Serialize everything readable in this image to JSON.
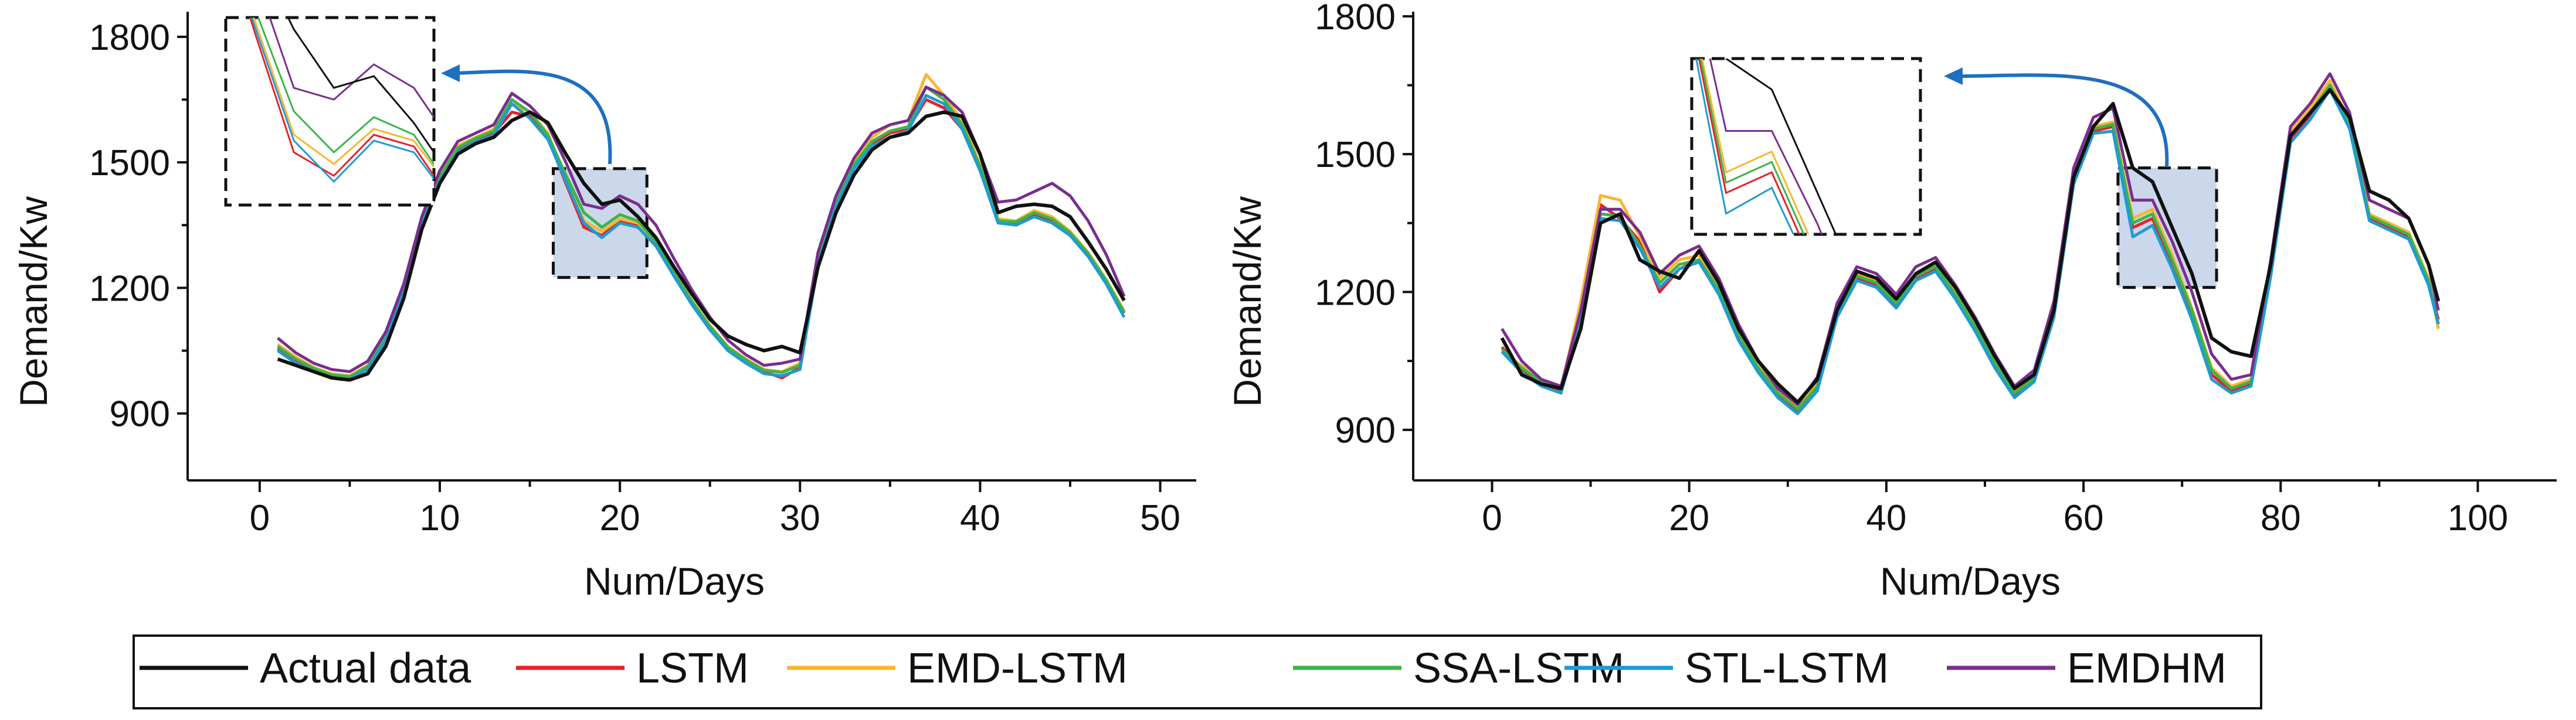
{
  "figure": {
    "description_free": true
  },
  "legend": {
    "entries": [
      {
        "label": "Actual data",
        "color": "#111111"
      },
      {
        "label": "LSTM",
        "color": "#e8202a"
      },
      {
        "label": "EMD-LSTM",
        "color": "#f7b731"
      },
      {
        "label": "SSA-LSTM",
        "color": "#3cb44b"
      },
      {
        "label": "STL-LSTM",
        "color": "#1f9bd1"
      },
      {
        "label": "EMDHM",
        "color": "#7b2d8e"
      }
    ]
  },
  "chart_data": [
    {
      "type": "line",
      "title": "",
      "xlabel": "Num/Days",
      "ylabel": "Demand/Kw",
      "xlim": [
        -4,
        52
      ],
      "ylim": [
        740,
        1860
      ],
      "xticks": [
        0,
        10,
        20,
        30,
        40,
        50
      ],
      "yticks": [
        900,
        1200,
        1500,
        1800
      ],
      "highlight_box": {
        "x": [
          16.3,
          21.5
        ],
        "y": [
          1225,
          1485
        ]
      },
      "inset": {
        "x": [
          16.3,
          21.5
        ],
        "y": [
          1300,
          1460
        ]
      },
      "x": [
        1,
        2,
        3,
        4,
        5,
        6,
        7,
        8,
        9,
        10,
        11,
        12,
        13,
        14,
        15,
        16,
        17,
        18,
        19,
        20,
        21,
        22,
        23,
        24,
        25,
        26,
        27,
        28,
        29,
        30,
        31,
        32,
        33,
        34,
        35,
        36,
        37,
        38,
        39,
        40,
        41,
        42,
        43,
        44,
        45,
        46,
        47,
        48
      ],
      "series": [
        {
          "name": "Actual data",
          "values": [
            1030,
            1015,
            1000,
            985,
            980,
            995,
            1060,
            1175,
            1340,
            1450,
            1520,
            1545,
            1560,
            1600,
            1620,
            1595,
            1520,
            1450,
            1400,
            1410,
            1370,
            1320,
            1250,
            1185,
            1125,
            1085,
            1065,
            1050,
            1060,
            1045,
            1250,
            1380,
            1470,
            1530,
            1560,
            1570,
            1610,
            1620,
            1610,
            1520,
            1380,
            1395,
            1400,
            1395,
            1370,
            1310,
            1245,
            1170
          ]
        },
        {
          "name": "LSTM",
          "values": [
            1055,
            1025,
            1005,
            990,
            985,
            1010,
            1080,
            1195,
            1355,
            1460,
            1530,
            1555,
            1570,
            1620,
            1610,
            1560,
            1450,
            1345,
            1325,
            1360,
            1350,
            1300,
            1230,
            1165,
            1105,
            1055,
            1025,
            1000,
            985,
            1010,
            1260,
            1400,
            1490,
            1545,
            1570,
            1580,
            1650,
            1630,
            1580,
            1480,
            1360,
            1355,
            1375,
            1360,
            1330,
            1280,
            1215,
            1140
          ]
        },
        {
          "name": "EMD-LSTM",
          "values": [
            1065,
            1035,
            1010,
            995,
            990,
            1015,
            1085,
            1200,
            1360,
            1470,
            1540,
            1560,
            1580,
            1640,
            1620,
            1570,
            1460,
            1360,
            1335,
            1365,
            1355,
            1310,
            1240,
            1170,
            1110,
            1060,
            1030,
            1005,
            1000,
            1020,
            1270,
            1410,
            1500,
            1560,
            1590,
            1600,
            1710,
            1660,
            1600,
            1495,
            1365,
            1360,
            1385,
            1370,
            1335,
            1285,
            1220,
            1145
          ]
        },
        {
          "name": "SSA-LSTM",
          "values": [
            1060,
            1030,
            1008,
            992,
            988,
            1012,
            1082,
            1198,
            1358,
            1465,
            1535,
            1558,
            1575,
            1650,
            1620,
            1565,
            1470,
            1380,
            1345,
            1375,
            1360,
            1310,
            1235,
            1168,
            1108,
            1058,
            1028,
            1003,
            998,
            1015,
            1265,
            1405,
            1495,
            1550,
            1575,
            1585,
            1680,
            1650,
            1590,
            1490,
            1360,
            1358,
            1380,
            1365,
            1332,
            1282,
            1218,
            1142
          ]
        },
        {
          "name": "STL-LSTM",
          "values": [
            1050,
            1020,
            1000,
            985,
            982,
            1005,
            1075,
            1190,
            1350,
            1455,
            1525,
            1550,
            1565,
            1640,
            1605,
            1555,
            1455,
            1355,
            1320,
            1355,
            1345,
            1300,
            1228,
            1160,
            1100,
            1050,
            1020,
            995,
            990,
            1005,
            1255,
            1395,
            1485,
            1540,
            1560,
            1575,
            1660,
            1640,
            1580,
            1480,
            1355,
            1350,
            1370,
            1355,
            1325,
            1275,
            1210,
            1130
          ]
        },
        {
          "name": "EMDHM",
          "values": [
            1080,
            1045,
            1020,
            1005,
            1000,
            1025,
            1095,
            1210,
            1370,
            1480,
            1550,
            1570,
            1590,
            1665,
            1635,
            1590,
            1500,
            1400,
            1390,
            1420,
            1400,
            1350,
            1270,
            1195,
            1130,
            1075,
            1040,
            1015,
            1020,
            1030,
            1285,
            1420,
            1510,
            1570,
            1590,
            1600,
            1680,
            1660,
            1620,
            1520,
            1405,
            1410,
            1430,
            1450,
            1420,
            1360,
            1280,
            1180
          ]
        }
      ]
    },
    {
      "type": "line",
      "title": "",
      "xlabel": "Num/Days",
      "ylabel": "Demand/Kw",
      "xlim": [
        -8,
        108
      ],
      "ylim": [
        790,
        1810
      ],
      "xticks": [
        0,
        20,
        40,
        60,
        80,
        100
      ],
      "yticks": [
        900,
        1200,
        1500,
        1800
      ],
      "highlight_box": {
        "x": [
          63.5,
          73.5
        ],
        "y": [
          1210,
          1470
        ]
      },
      "inset": {
        "x": [
          63.5,
          73.5
        ],
        "y": [
          1300,
          1470
        ]
      },
      "x": [
        1,
        3,
        5,
        7,
        9,
        11,
        13,
        15,
        17,
        19,
        21,
        23,
        25,
        27,
        29,
        31,
        33,
        35,
        37,
        39,
        41,
        43,
        45,
        47,
        49,
        51,
        53,
        55,
        57,
        59,
        61,
        63,
        65,
        67,
        69,
        71,
        73,
        75,
        77,
        79,
        81,
        83,
        85,
        87,
        89,
        91,
        93,
        95,
        96
      ],
      "series": [
        {
          "name": "Actual data",
          "values": [
            1100,
            1020,
            1000,
            990,
            1120,
            1350,
            1370,
            1270,
            1245,
            1230,
            1290,
            1220,
            1120,
            1050,
            1000,
            960,
            1010,
            1160,
            1245,
            1230,
            1185,
            1240,
            1265,
            1210,
            1140,
            1060,
            990,
            1020,
            1160,
            1450,
            1560,
            1610,
            1470,
            1440,
            1340,
            1240,
            1100,
            1070,
            1060,
            1260,
            1540,
            1590,
            1640,
            1580,
            1420,
            1400,
            1360,
            1260,
            1180
          ]
        },
        {
          "name": "LSTM",
          "values": [
            1080,
            1030,
            1000,
            985,
            1140,
            1390,
            1360,
            1310,
            1200,
            1250,
            1270,
            1200,
            1100,
            1030,
            975,
            940,
            990,
            1150,
            1230,
            1215,
            1170,
            1230,
            1250,
            1190,
            1120,
            1040,
            975,
            1010,
            1150,
            1440,
            1550,
            1560,
            1340,
            1360,
            1260,
            1150,
            1020,
            985,
            1000,
            1240,
            1530,
            1580,
            1650,
            1560,
            1360,
            1340,
            1320,
            1220,
            1140
          ]
        },
        {
          "name": "EMD-LSTM",
          "values": [
            1070,
            1040,
            1010,
            990,
            1180,
            1410,
            1400,
            1320,
            1230,
            1270,
            1280,
            1210,
            1110,
            1040,
            985,
            950,
            1000,
            1160,
            1240,
            1225,
            1180,
            1240,
            1260,
            1200,
            1130,
            1050,
            985,
            1015,
            1160,
            1450,
            1560,
            1570,
            1360,
            1380,
            1280,
            1165,
            1035,
            995,
            1010,
            1250,
            1550,
            1600,
            1660,
            1570,
            1370,
            1350,
            1330,
            1230,
            1120
          ]
        },
        {
          "name": "SSA-LSTM",
          "values": [
            1075,
            1035,
            1005,
            988,
            1150,
            1370,
            1365,
            1300,
            1220,
            1260,
            1270,
            1205,
            1105,
            1035,
            980,
            945,
            995,
            1155,
            1235,
            1220,
            1175,
            1235,
            1255,
            1195,
            1125,
            1045,
            980,
            1012,
            1155,
            1445,
            1555,
            1565,
            1350,
            1370,
            1270,
            1160,
            1030,
            990,
            1005,
            1245,
            1540,
            1590,
            1650,
            1565,
            1365,
            1345,
            1325,
            1225,
            1130
          ]
        },
        {
          "name": "STL-LSTM",
          "values": [
            1070,
            1025,
            995,
            980,
            1130,
            1360,
            1355,
            1295,
            1210,
            1250,
            1265,
            1195,
            1095,
            1025,
            970,
            935,
            985,
            1145,
            1225,
            1210,
            1165,
            1225,
            1245,
            1185,
            1115,
            1035,
            970,
            1005,
            1145,
            1435,
            1545,
            1550,
            1320,
            1345,
            1250,
            1140,
            1010,
            980,
            995,
            1235,
            1525,
            1575,
            1640,
            1555,
            1355,
            1335,
            1315,
            1215,
            1130
          ]
        },
        {
          "name": "EMDHM",
          "values": [
            1120,
            1050,
            1010,
            995,
            1160,
            1380,
            1380,
            1330,
            1240,
            1280,
            1300,
            1230,
            1130,
            1050,
            990,
            955,
            1015,
            1175,
            1255,
            1240,
            1195,
            1255,
            1275,
            1215,
            1145,
            1065,
            995,
            1030,
            1180,
            1470,
            1580,
            1600,
            1400,
            1400,
            1310,
            1200,
            1065,
            1010,
            1020,
            1270,
            1560,
            1610,
            1675,
            1590,
            1400,
            1380,
            1360,
            1260,
            1160
          ]
        }
      ]
    }
  ]
}
